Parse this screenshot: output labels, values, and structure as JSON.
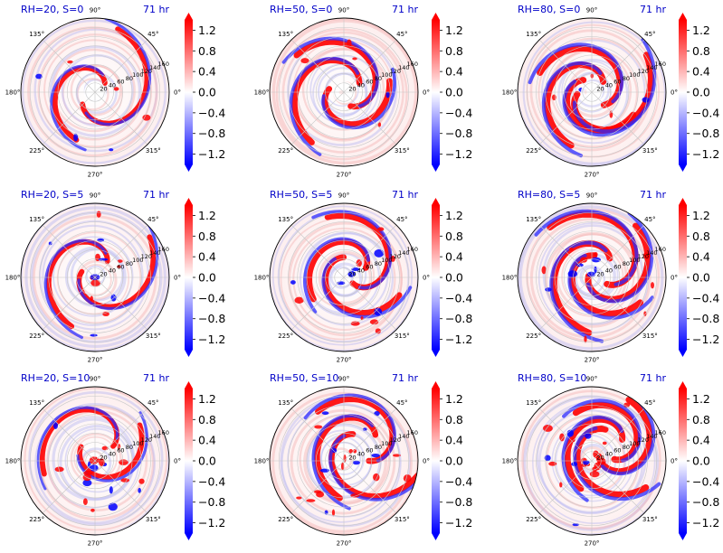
{
  "chart_data": {
    "type": "heatmap",
    "projection": "polar",
    "grid": true,
    "colormap": "bwr",
    "colors": {
      "neg": "#0000ff",
      "zero": "#ffffff",
      "pos": "#ff0000",
      "title": "#0000c8"
    },
    "colorbar": {
      "ticks": [
        "1.2",
        "0.8",
        "0.4",
        "0.0",
        "−0.4",
        "−0.8",
        "−1.2"
      ],
      "range": [
        -1.4,
        1.4
      ],
      "extend": "both"
    },
    "angle_labels": [
      "0°",
      "45°",
      "90°",
      "135°",
      "180°",
      "225°",
      "270°",
      "315°"
    ],
    "radius_labels": [
      "20",
      "40",
      "60",
      "80",
      "100",
      "120",
      "140",
      "160"
    ],
    "time_label": "71 hr",
    "panels": [
      {
        "title": "RH=20, S=0"
      },
      {
        "title": "RH=50, S=0"
      },
      {
        "title": "RH=80, S=0"
      },
      {
        "title": "RH=20, S=5"
      },
      {
        "title": "RH=50, S=5"
      },
      {
        "title": "RH=80, S=5"
      },
      {
        "title": "RH=20, S=10"
      },
      {
        "title": "RH=50, S=10"
      },
      {
        "title": "RH=80, S=10"
      }
    ]
  }
}
